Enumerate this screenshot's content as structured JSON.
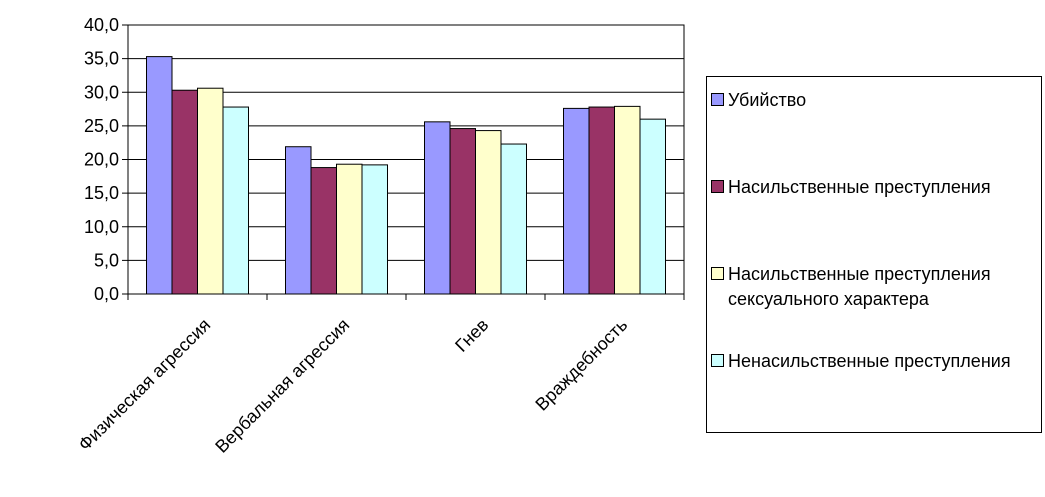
{
  "chart_data": {
    "type": "bar",
    "categories": [
      "Физическая агрессия",
      "Вербальная агрессия",
      "Гнев",
      "Враждебность"
    ],
    "series": [
      {
        "name": "Убийство",
        "color": "#9999FF",
        "values": [
          35.3,
          21.9,
          25.6,
          27.6
        ]
      },
      {
        "name": "Насильственные преступления",
        "color": "#993366",
        "values": [
          30.3,
          18.8,
          24.6,
          27.8
        ]
      },
      {
        "name": "Насильственные преступления сексуального характера",
        "color": "#FFFFCC",
        "values": [
          30.6,
          19.3,
          24.3,
          27.9
        ]
      },
      {
        "name": "Ненасильственные преступления",
        "color": "#CCFFFF",
        "values": [
          27.8,
          19.2,
          22.3,
          26.0
        ]
      }
    ],
    "yticks": [
      "0,0",
      "5,0",
      "10,0",
      "15,0",
      "20,0",
      "25,0",
      "30,0",
      "35,0",
      "40,0"
    ],
    "ylim": [
      0,
      40
    ],
    "grid": true,
    "legend_position": "right",
    "title": "",
    "xlabel": "",
    "ylabel": ""
  }
}
